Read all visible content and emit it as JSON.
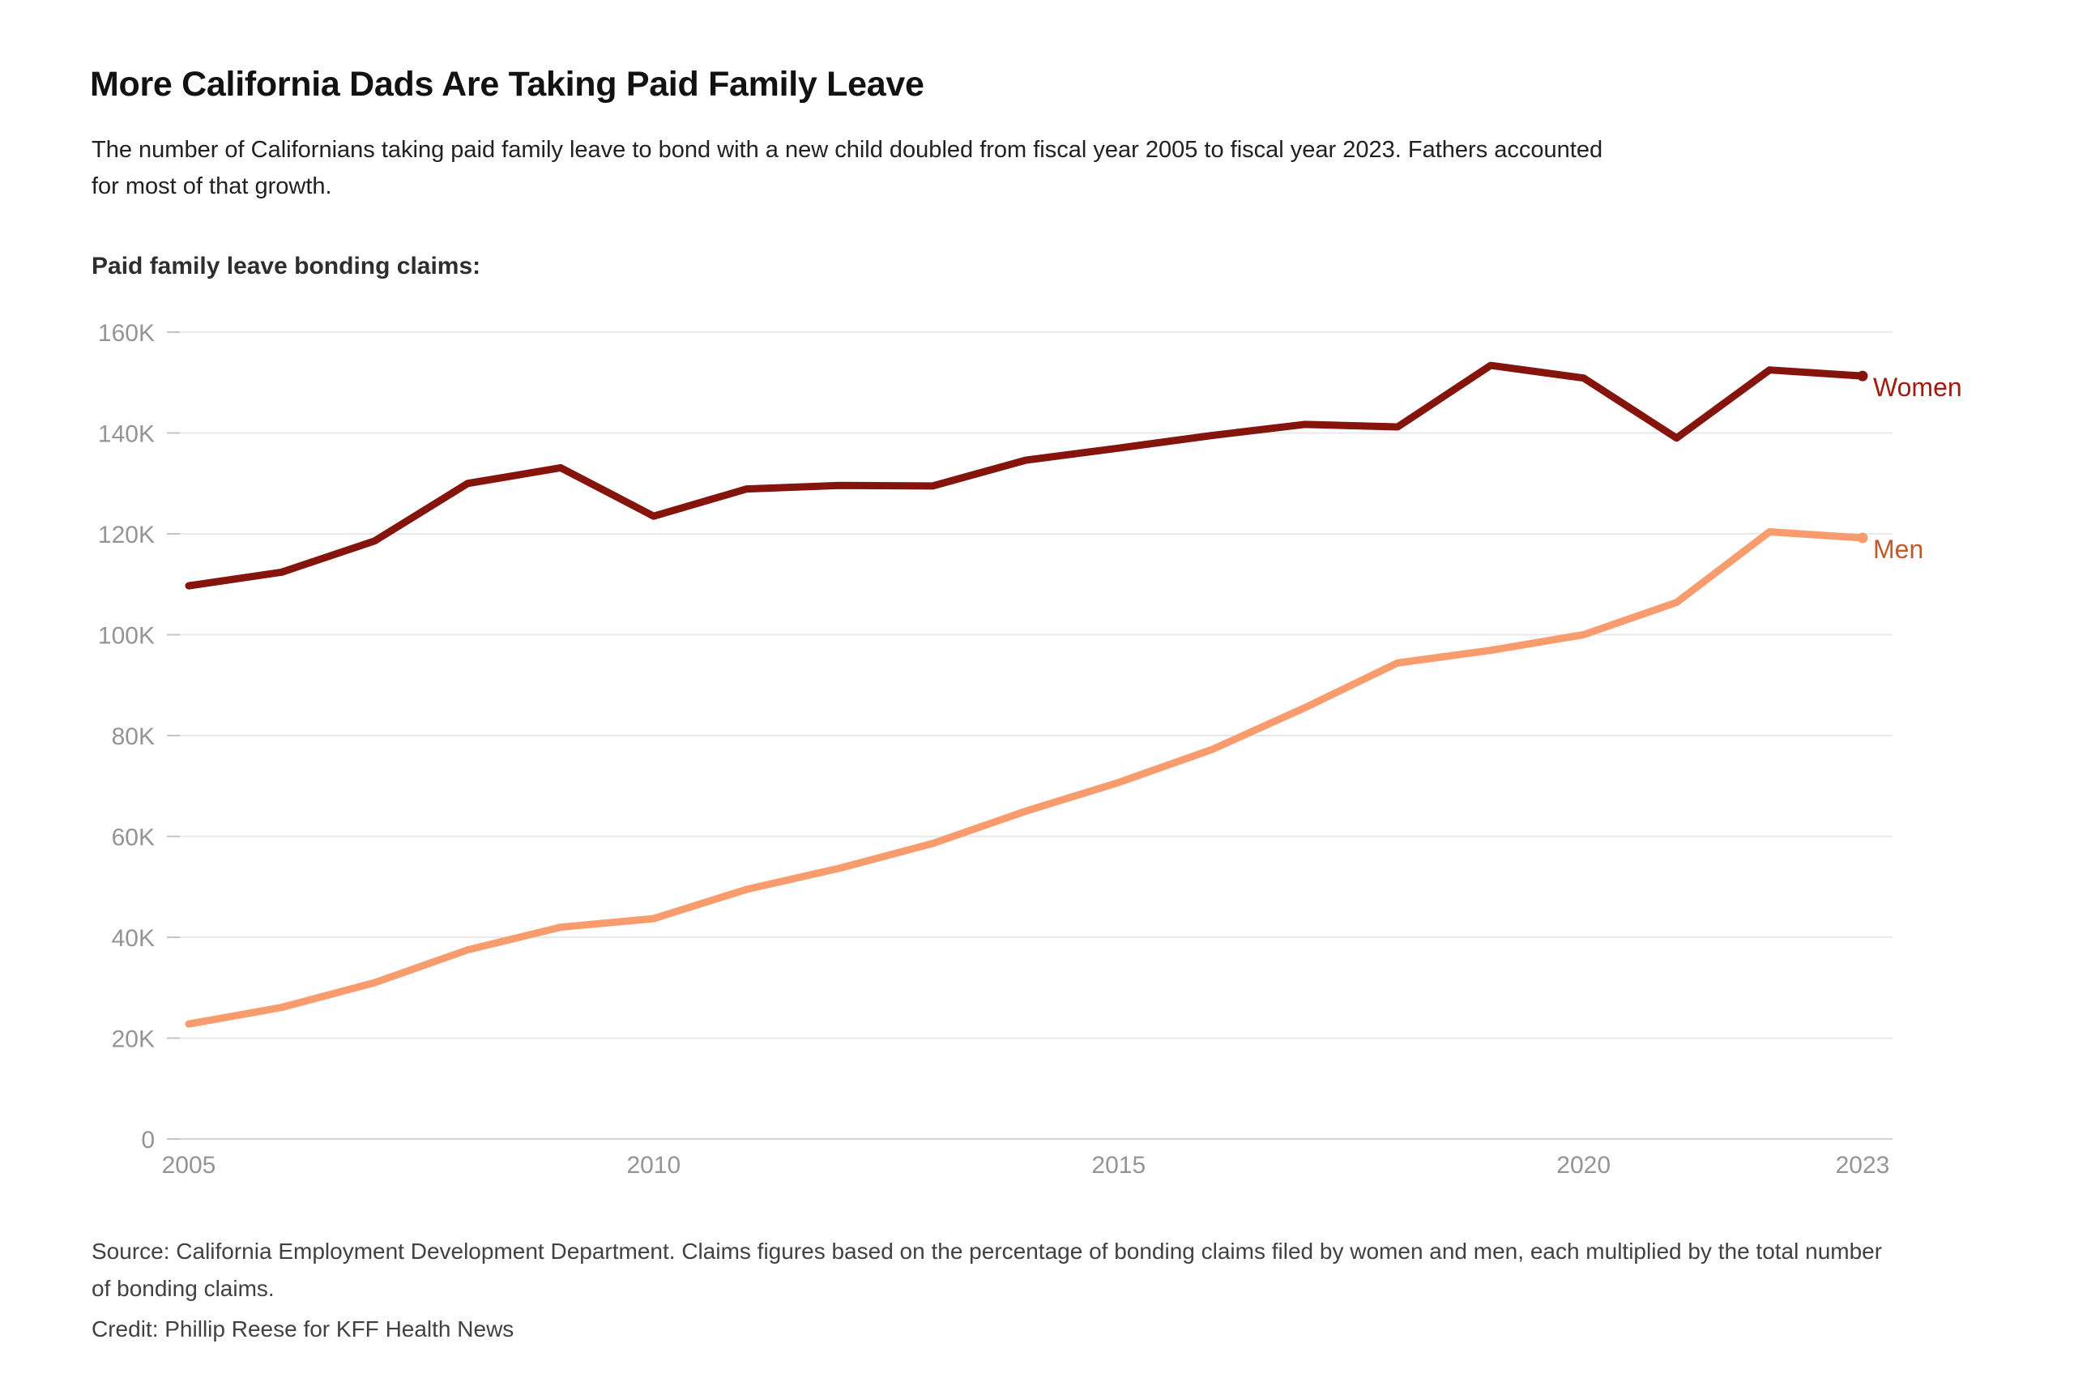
{
  "page": {
    "title": "More California Dads Are Taking Paid Family Leave",
    "subtitle_lines": [
      "The number of Californians taking paid family leave to bond with a new child doubled from fiscal year 2005 to fiscal year 2023. Fathers accounted",
      "for most of that growth."
    ],
    "source_lines": [
      "Source: California Employment Development Department. Claims figures based on the percentage of bonding claims filed by women and men, each multiplied by the total number",
      "of bonding claims."
    ],
    "credit": "Credit: Phillip Reese for KFF Health News"
  },
  "chart_data": {
    "type": "line",
    "title": "Paid family leave bonding claims:",
    "x": [
      2005,
      2006,
      2007,
      2008,
      2009,
      2010,
      2011,
      2012,
      2013,
      2014,
      2015,
      2016,
      2017,
      2018,
      2019,
      2020,
      2021,
      2022,
      2023
    ],
    "x_tick_labels": [
      "2005",
      "2010",
      "2015",
      "2020",
      "2023"
    ],
    "x_tick_values": [
      2005,
      2010,
      2015,
      2020,
      2023
    ],
    "y_tick_values": [
      0,
      20000,
      40000,
      60000,
      80000,
      100000,
      120000,
      140000,
      160000
    ],
    "y_tick_labels": [
      "0",
      "20K",
      "40K",
      "60K",
      "80K",
      "100K",
      "120K",
      "140K",
      "160K"
    ],
    "ylim": [
      0,
      160000
    ],
    "grid": "horizontal",
    "legend_position": "direct-labels-right-of-line-ends",
    "series": [
      {
        "name": "Women",
        "color": "#84140c",
        "label_color": "#a21b10",
        "values": [
          109700,
          112400,
          118600,
          130000,
          133100,
          123500,
          128900,
          129600,
          129500,
          134600,
          137000,
          139500,
          141700,
          141200,
          153400,
          150900,
          139000,
          152500,
          151300
        ]
      },
      {
        "name": "Men",
        "color": "#f99c6d",
        "label_color": "#c05a28",
        "values": [
          22800,
          26100,
          31000,
          37500,
          42000,
          43700,
          49500,
          53700,
          58600,
          65000,
          70700,
          77200,
          85500,
          94400,
          96900,
          100000,
          106400,
          120400,
          119200
        ]
      }
    ],
    "style": {
      "grid_color": "#e8e8e8",
      "zero_line_color": "#d4d4d4",
      "tick_stub_color": "#c4c4c4",
      "axis_text_color": "#949494",
      "background": "#ffffff"
    }
  }
}
